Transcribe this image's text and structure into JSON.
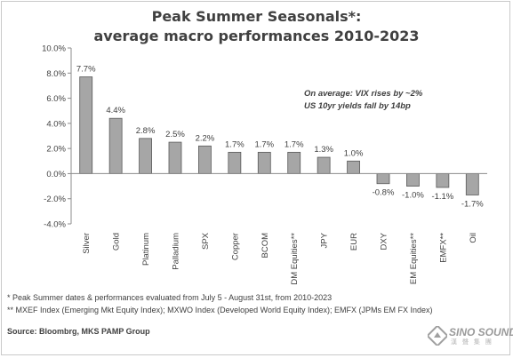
{
  "chart_data": {
    "type": "bar",
    "title": "Peak Summer Seasonals*:",
    "subtitle": "average macro performances 2010-2023",
    "categories": [
      "Silver",
      "Gold",
      "Platinum",
      "Palladium",
      "SPX",
      "Copper",
      "BCOM",
      "DM Equities**",
      "JPY",
      "EUR",
      "DXY",
      "EM Equities**",
      "EMFX**",
      "Oil"
    ],
    "values": [
      7.7,
      4.4,
      2.8,
      2.5,
      2.2,
      1.7,
      1.7,
      1.7,
      1.3,
      1.0,
      -0.8,
      -1.0,
      -1.1,
      -1.7
    ],
    "data_labels": [
      "7.7%",
      "4.4%",
      "2.8%",
      "2.5%",
      "2.2%",
      "1.7%",
      "1.7%",
      "1.7%",
      "1.3%",
      "1.0%",
      "-0.8%",
      "-1.0%",
      "-1.1%",
      "-1.7%"
    ],
    "ylim": [
      -4,
      10
    ],
    "yticks": [
      -4,
      -2,
      0,
      2,
      4,
      6,
      8,
      10
    ],
    "ytick_labels": [
      "-4.0%",
      "-2.0%",
      "0.0%",
      "2.0%",
      "4.0%",
      "6.0%",
      "8.0%",
      "10.0%"
    ],
    "xlabel": "",
    "ylabel": "",
    "grid": false,
    "bar_color": "#a6a6a6",
    "bar_edge_color": "#595959",
    "annotation": [
      "On average: VIX rises by ~2%",
      "US 10yr yields fall by 14bp"
    ]
  },
  "footnotes": [
    "* Peak Summer dates & performances evaluated  from July 5 - August 31st, from 2010-2023",
    "** MXEF Index (Emerging Mkt Equity Index); MXWO Index (Developed World Equity Index); EMFX (JPMs EM FX Index)"
  ],
  "source": "Source: Bloombrg, MKS PAMP Group",
  "watermark": {
    "text": "SINO SOUND",
    "subtext": "漢 聲 集 團"
  },
  "colors": {
    "text": "#404040",
    "axis": "#8c8c8c"
  }
}
